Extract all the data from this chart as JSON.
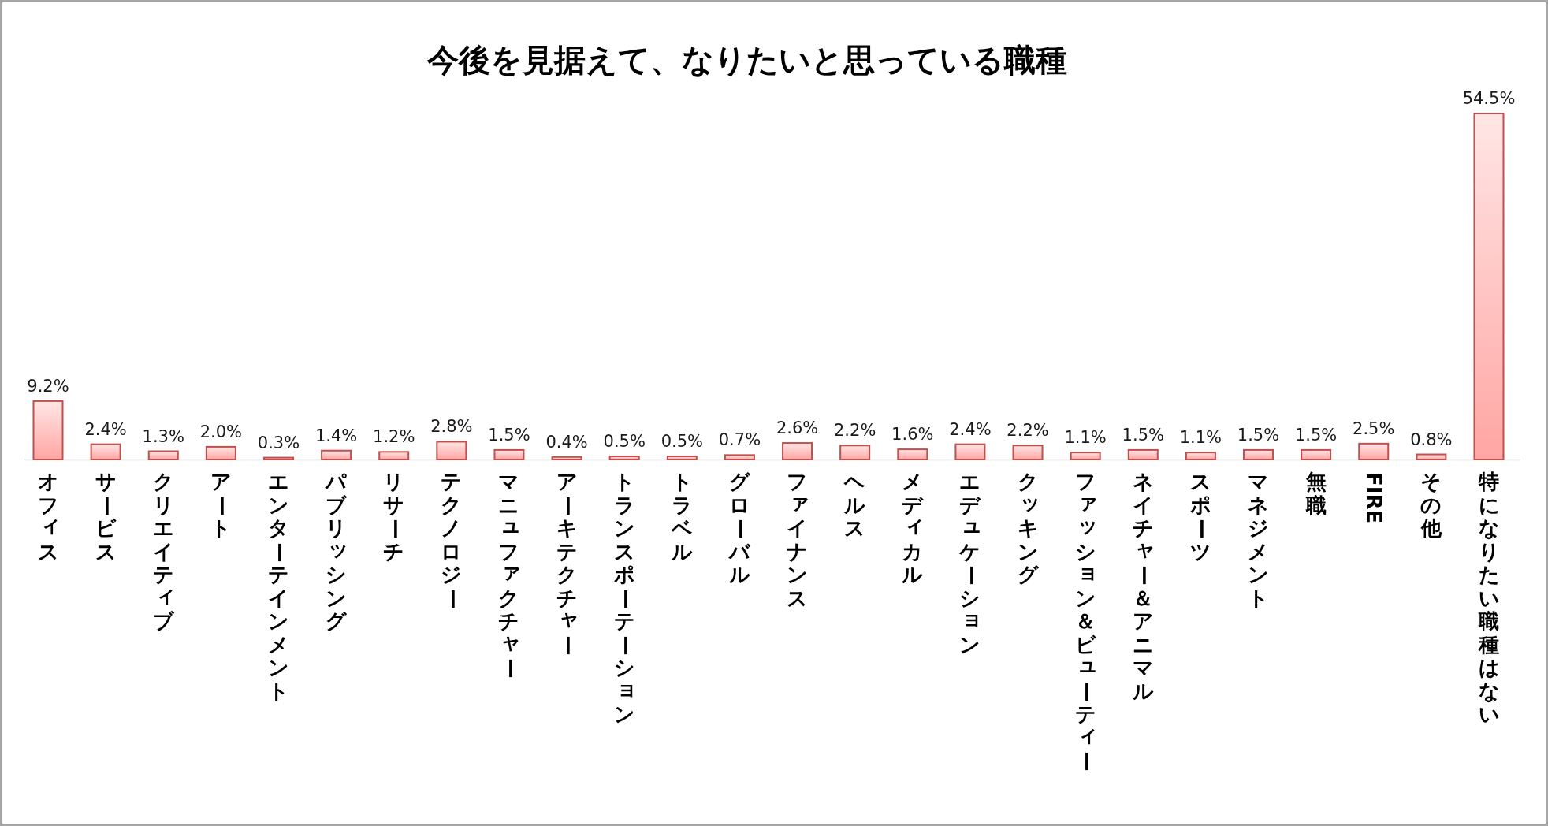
{
  "chart_data": {
    "type": "bar",
    "title": "今後を見据えて、なりたいと思っている職種",
    "categories": [
      "オフィス",
      "サービス",
      "クリエイティブ",
      "アート",
      "エンターテインメント",
      "パブリッシング",
      "リサーチ",
      "テクノロジー",
      "マニュファクチャー",
      "アーキテクチャー",
      "トランスポーテーション",
      "トラベル",
      "グローバル",
      "ファイナンス",
      "ヘルス",
      "メディカル",
      "エデュケーション",
      "クッキング",
      "ファッション＆ビューティー",
      "ネイチャー＆アニマル",
      "スポーツ",
      "マネジメント",
      "無職",
      "FIRE",
      "その他",
      "特になりたい職種はない"
    ],
    "values": [
      9.2,
      2.4,
      1.3,
      2.0,
      0.3,
      1.4,
      1.2,
      2.8,
      1.5,
      0.4,
      0.5,
      0.5,
      0.7,
      2.6,
      2.2,
      1.6,
      2.4,
      2.2,
      1.1,
      1.5,
      1.1,
      1.5,
      1.5,
      2.5,
      0.8,
      54.5
    ],
    "value_labels": [
      "9.2%",
      "2.4%",
      "1.3%",
      "2.0%",
      "0.3%",
      "1.4%",
      "1.2%",
      "2.8%",
      "1.5%",
      "0.4%",
      "0.5%",
      "0.5%",
      "0.7%",
      "2.6%",
      "2.2%",
      "1.6%",
      "2.4%",
      "2.2%",
      "1.1%",
      "1.5%",
      "1.1%",
      "1.5%",
      "1.5%",
      "2.5%",
      "0.8%",
      "54.5%"
    ],
    "color": "#c0504d"
  }
}
